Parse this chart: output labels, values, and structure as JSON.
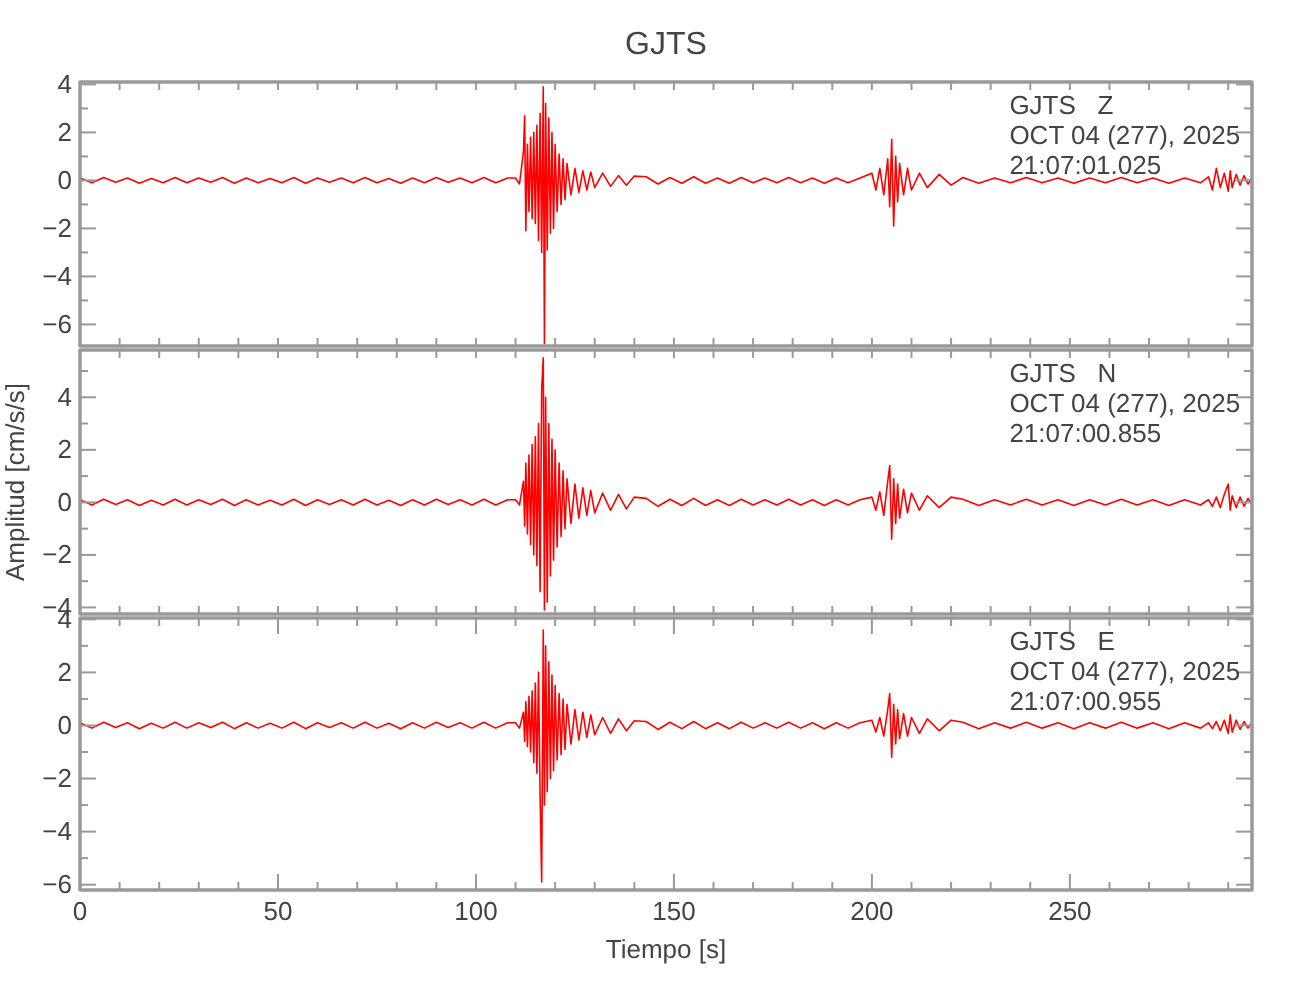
{
  "chart_data": [
    {
      "type": "line",
      "title": "GJTS",
      "annotations": [
        "GJTS   Z",
        "OCT 04 (277), 2025",
        "21:07:01.025"
      ],
      "tick_labels": "y",
      "x": [
        0,
        3,
        6,
        9,
        12,
        15,
        18,
        21,
        24,
        27,
        30,
        33,
        36,
        39,
        42,
        45,
        48,
        51,
        54,
        57,
        60,
        63,
        66,
        69,
        72,
        75,
        78,
        81,
        84,
        87,
        90,
        93,
        96,
        99,
        102,
        105,
        108,
        110,
        111,
        112,
        112.3,
        112.6,
        113,
        113.4,
        113.8,
        114.2,
        114.6,
        115,
        115.4,
        115.8,
        116.2,
        116.6,
        117,
        117.3,
        117.6,
        118,
        118.4,
        118.8,
        119.2,
        119.6,
        120,
        120.5,
        121,
        121.5,
        122,
        122.5,
        123,
        124,
        125,
        126,
        127,
        128,
        129,
        130,
        132,
        134,
        136,
        138,
        140,
        143,
        146,
        149,
        152,
        155,
        158,
        161,
        164,
        167,
        170,
        173,
        176,
        179,
        182,
        185,
        188,
        191,
        194,
        197,
        200,
        201,
        202,
        203,
        204,
        204.5,
        205,
        205.5,
        206,
        206.5,
        207,
        208,
        209,
        210,
        212,
        214,
        217,
        220,
        223,
        227,
        231,
        235,
        239,
        243,
        247,
        251,
        255,
        259,
        263,
        267,
        271,
        275,
        279,
        283,
        285,
        286,
        287,
        288,
        289,
        290,
        290.5,
        291,
        292,
        293,
        294,
        295,
        296
      ],
      "series": [
        {
          "color": "#ff0000",
          "values": [
            0.1,
            -0.1,
            0.12,
            -0.08,
            0.1,
            -0.12,
            0.08,
            -0.1,
            0.12,
            -0.1,
            0.1,
            -0.08,
            0.12,
            -0.12,
            0.1,
            -0.1,
            0.08,
            -0.1,
            0.12,
            -0.12,
            0.1,
            -0.08,
            0.1,
            -0.1,
            0.12,
            -0.1,
            0.08,
            -0.12,
            0.1,
            -0.1,
            0.12,
            -0.08,
            0.1,
            -0.1,
            0.12,
            -0.1,
            0.1,
            0.1,
            -0.15,
            1.2,
            2.7,
            -2.1,
            1.5,
            -1.3,
            1.8,
            -1.6,
            2.0,
            -1.8,
            2.3,
            -2.5,
            2.8,
            -3.0,
            3.9,
            -6.8,
            3.2,
            -2.9,
            2.6,
            -2.2,
            2.0,
            -2.0,
            1.5,
            -1.3,
            1.1,
            -1.0,
            0.9,
            -0.8,
            0.7,
            -0.6,
            0.5,
            -0.5,
            0.4,
            -0.4,
            0.35,
            -0.3,
            0.3,
            -0.25,
            0.2,
            -0.2,
            0.18,
            0.15,
            -0.15,
            0.12,
            -0.12,
            0.15,
            -0.12,
            0.1,
            -0.12,
            0.12,
            -0.1,
            0.1,
            -0.1,
            0.12,
            -0.1,
            0.1,
            -0.12,
            0.1,
            -0.1,
            0.1,
            0.3,
            -0.4,
            0.5,
            -0.6,
            0.9,
            -1.1,
            1.7,
            -1.9,
            1.0,
            -0.9,
            0.7,
            -0.6,
            0.5,
            -0.4,
            0.3,
            -0.3,
            0.25,
            -0.2,
            0.12,
            -0.12,
            0.1,
            -0.1,
            0.12,
            -0.1,
            0.1,
            -0.12,
            0.1,
            -0.1,
            0.12,
            -0.1,
            0.1,
            -0.12,
            0.1,
            -0.1,
            0.15,
            -0.4,
            0.5,
            -0.3,
            0.3,
            -0.45,
            0.4,
            -0.3,
            0.25,
            -0.2,
            0.2,
            -0.15,
            0.1
          ]
        }
      ],
      "xlim": [
        0,
        296
      ],
      "ylim": [
        -6.9,
        4.1
      ],
      "xticks": [
        {
          "value": 0,
          "label": null
        },
        {
          "value": 10,
          "label": null
        },
        {
          "value": 20,
          "label": null
        },
        {
          "value": 30,
          "label": null
        },
        {
          "value": 40,
          "label": null
        },
        {
          "value": 50,
          "label": null
        },
        {
          "value": 60,
          "label": null
        },
        {
          "value": 70,
          "label": null
        },
        {
          "value": 80,
          "label": null
        },
        {
          "value": 90,
          "label": null
        },
        {
          "value": 100,
          "label": null
        },
        {
          "value": 110,
          "label": null
        },
        {
          "value": 120,
          "label": null
        },
        {
          "value": 130,
          "label": null
        },
        {
          "value": 140,
          "label": null
        },
        {
          "value": 150,
          "label": null
        },
        {
          "value": 160,
          "label": null
        },
        {
          "value": 170,
          "label": null
        },
        {
          "value": 180,
          "label": null
        },
        {
          "value": 190,
          "label": null
        },
        {
          "value": 200,
          "label": null
        },
        {
          "value": 210,
          "label": null
        },
        {
          "value": 220,
          "label": null
        },
        {
          "value": 230,
          "label": null
        },
        {
          "value": 240,
          "label": null
        },
        {
          "value": 250,
          "label": null
        },
        {
          "value": 260,
          "label": null
        },
        {
          "value": 270,
          "label": null
        },
        {
          "value": 280,
          "label": null
        },
        {
          "value": 290,
          "label": null
        }
      ],
      "yticks": [
        {
          "value": -6,
          "label": "−6"
        },
        {
          "value": -5,
          "label": null
        },
        {
          "value": -4,
          "label": "−4"
        },
        {
          "value": -3,
          "label": null
        },
        {
          "value": -2,
          "label": "−2"
        },
        {
          "value": -1,
          "label": null
        },
        0,
        {
          "value": 1,
          "label": null
        },
        2,
        {
          "value": 3,
          "label": null
        },
        4
      ]
    },
    {
      "type": "line",
      "ylabel": "Amplitud [cm/s/s]",
      "annotations": [
        "GJTS   N",
        "OCT 04 (277), 2025",
        "21:07:00.855"
      ],
      "tick_labels": "y",
      "x": [
        0,
        3,
        6,
        9,
        12,
        15,
        18,
        21,
        24,
        27,
        30,
        33,
        36,
        39,
        42,
        45,
        48,
        51,
        54,
        57,
        60,
        63,
        66,
        69,
        72,
        75,
        78,
        81,
        84,
        87,
        90,
        93,
        96,
        99,
        102,
        105,
        108,
        110,
        111,
        112,
        112.3,
        112.6,
        113,
        113.4,
        113.8,
        114.2,
        114.6,
        115,
        115.4,
        115.8,
        116.2,
        116.6,
        117,
        117.3,
        117.6,
        118,
        118.4,
        118.8,
        119.2,
        119.6,
        120,
        120.5,
        121,
        121.5,
        122,
        122.5,
        123,
        124,
        125,
        126,
        127,
        128,
        129,
        130,
        132,
        134,
        136,
        138,
        140,
        143,
        146,
        149,
        152,
        155,
        158,
        161,
        164,
        167,
        170,
        173,
        176,
        179,
        182,
        185,
        188,
        191,
        194,
        197,
        200,
        201,
        202,
        203,
        204,
        204.5,
        205,
        205.5,
        206,
        206.5,
        207,
        208,
        209,
        210,
        212,
        214,
        217,
        220,
        223,
        227,
        231,
        235,
        239,
        243,
        247,
        251,
        255,
        259,
        263,
        267,
        271,
        275,
        279,
        283,
        285,
        286,
        287,
        288,
        289,
        290,
        290.5,
        291,
        292,
        293,
        294,
        295,
        296
      ],
      "series": [
        {
          "color": "#ff0000",
          "values": [
            0.1,
            -0.1,
            0.12,
            -0.08,
            0.1,
            -0.12,
            0.08,
            -0.1,
            0.12,
            -0.1,
            0.1,
            -0.08,
            0.12,
            -0.12,
            0.1,
            -0.1,
            0.08,
            -0.1,
            0.12,
            -0.12,
            0.1,
            -0.08,
            0.1,
            -0.1,
            0.12,
            -0.1,
            0.08,
            -0.12,
            0.1,
            -0.1,
            0.12,
            -0.08,
            0.1,
            -0.1,
            0.12,
            -0.1,
            0.1,
            0.1,
            -0.1,
            0.8,
            -0.9,
            1.5,
            -1.2,
            1.8,
            -1.6,
            2.2,
            -2.0,
            2.5,
            -2.4,
            3.0,
            -3.4,
            4.3,
            5.5,
            -4.1,
            4.0,
            -3.8,
            3.0,
            -2.8,
            2.4,
            -2.2,
            2.0,
            -1.7,
            1.5,
            -1.3,
            1.2,
            -1.0,
            0.9,
            -0.8,
            0.7,
            -0.6,
            0.55,
            -0.5,
            0.45,
            -0.4,
            0.35,
            -0.3,
            0.3,
            -0.25,
            0.2,
            0.15,
            -0.15,
            0.12,
            -0.12,
            0.15,
            -0.12,
            0.1,
            -0.12,
            0.12,
            -0.1,
            0.1,
            -0.1,
            0.12,
            -0.1,
            0.1,
            -0.12,
            0.1,
            -0.1,
            0.1,
            0.2,
            -0.3,
            0.4,
            -0.5,
            0.8,
            1.4,
            -1.4,
            0.9,
            -0.8,
            0.7,
            -0.6,
            0.5,
            -0.4,
            0.35,
            -0.3,
            0.25,
            -0.2,
            0.2,
            0.12,
            -0.12,
            0.1,
            -0.1,
            0.12,
            -0.1,
            0.1,
            -0.12,
            0.1,
            -0.1,
            0.12,
            -0.1,
            0.1,
            -0.12,
            0.1,
            -0.1,
            0.1,
            -0.15,
            0.2,
            -0.2,
            0.3,
            0.7,
            -0.3,
            0.25,
            -0.2,
            0.2,
            -0.15,
            0.15,
            -0.1
          ]
        }
      ],
      "xlim": [
        0,
        296
      ],
      "ylim": [
        -4.25,
        5.8
      ],
      "xticks": [
        {
          "value": 0,
          "label": null
        },
        {
          "value": 10,
          "label": null
        },
        {
          "value": 20,
          "label": null
        },
        {
          "value": 30,
          "label": null
        },
        {
          "value": 40,
          "label": null
        },
        {
          "value": 50,
          "label": null
        },
        {
          "value": 60,
          "label": null
        },
        {
          "value": 70,
          "label": null
        },
        {
          "value": 80,
          "label": null
        },
        {
          "value": 90,
          "label": null
        },
        {
          "value": 100,
          "label": null
        },
        {
          "value": 110,
          "label": null
        },
        {
          "value": 120,
          "label": null
        },
        {
          "value": 130,
          "label": null
        },
        {
          "value": 140,
          "label": null
        },
        {
          "value": 150,
          "label": null
        },
        {
          "value": 160,
          "label": null
        },
        {
          "value": 170,
          "label": null
        },
        {
          "value": 180,
          "label": null
        },
        {
          "value": 190,
          "label": null
        },
        {
          "value": 200,
          "label": null
        },
        {
          "value": 210,
          "label": null
        },
        {
          "value": 220,
          "label": null
        },
        {
          "value": 230,
          "label": null
        },
        {
          "value": 240,
          "label": null
        },
        {
          "value": 250,
          "label": null
        },
        {
          "value": 260,
          "label": null
        },
        {
          "value": 270,
          "label": null
        },
        {
          "value": 280,
          "label": null
        },
        {
          "value": 290,
          "label": null
        }
      ],
      "yticks": [
        {
          "value": -4,
          "label": "−4"
        },
        {
          "value": -3,
          "label": null
        },
        {
          "value": -2,
          "label": "−2"
        },
        {
          "value": -1,
          "label": null
        },
        0,
        {
          "value": 1,
          "label": null
        },
        2,
        {
          "value": 3,
          "label": null
        },
        4,
        {
          "value": 5,
          "label": null
        }
      ]
    },
    {
      "type": "line",
      "xlabel": "Tiempo [s]",
      "annotations": [
        "GJTS   E",
        "OCT 04 (277), 2025",
        "21:07:00.955"
      ],
      "x": [
        0,
        3,
        6,
        9,
        12,
        15,
        18,
        21,
        24,
        27,
        30,
        33,
        36,
        39,
        42,
        45,
        48,
        51,
        54,
        57,
        60,
        63,
        66,
        69,
        72,
        75,
        78,
        81,
        84,
        87,
        90,
        93,
        96,
        99,
        102,
        105,
        108,
        110,
        111,
        112,
        112.3,
        112.6,
        113,
        113.4,
        113.8,
        114.2,
        114.6,
        115,
        115.4,
        115.8,
        116.2,
        116.6,
        117,
        117.3,
        117.6,
        118,
        118.4,
        118.8,
        119.2,
        119.6,
        120,
        120.5,
        121,
        121.5,
        122,
        122.5,
        123,
        124,
        125,
        126,
        127,
        128,
        129,
        130,
        132,
        134,
        136,
        138,
        140,
        143,
        146,
        149,
        152,
        155,
        158,
        161,
        164,
        167,
        170,
        173,
        176,
        179,
        182,
        185,
        188,
        191,
        194,
        197,
        200,
        201,
        202,
        203,
        204,
        204.5,
        205,
        205.5,
        206,
        206.5,
        207,
        208,
        209,
        210,
        212,
        214,
        217,
        220,
        223,
        227,
        231,
        235,
        239,
        243,
        247,
        251,
        255,
        259,
        263,
        267,
        271,
        275,
        279,
        283,
        285,
        286,
        287,
        288,
        289,
        290,
        290.5,
        291,
        292,
        293,
        294,
        295,
        296
      ],
      "series": [
        {
          "color": "#ff0000",
          "values": [
            0.1,
            -0.1,
            0.12,
            -0.08,
            0.1,
            -0.12,
            0.08,
            -0.1,
            0.12,
            -0.1,
            0.1,
            -0.08,
            0.12,
            -0.12,
            0.1,
            -0.1,
            0.08,
            -0.1,
            0.12,
            -0.12,
            0.1,
            -0.08,
            0.1,
            -0.1,
            0.12,
            -0.1,
            0.08,
            -0.12,
            0.1,
            -0.1,
            0.12,
            -0.08,
            0.1,
            -0.1,
            0.12,
            -0.1,
            0.1,
            0.1,
            -0.1,
            0.5,
            -0.6,
            0.9,
            -0.8,
            1.1,
            -1.0,
            1.3,
            -1.4,
            1.6,
            -1.8,
            2.0,
            -2.6,
            -5.9,
            3.6,
            -3.0,
            3.0,
            -2.5,
            2.4,
            -2.0,
            1.9,
            -1.7,
            1.5,
            -1.3,
            1.2,
            -1.1,
            1.0,
            -0.9,
            0.8,
            -0.7,
            0.6,
            -0.55,
            0.5,
            -0.45,
            0.4,
            -0.35,
            0.3,
            -0.3,
            0.25,
            -0.2,
            0.18,
            0.15,
            -0.15,
            0.12,
            -0.12,
            0.15,
            -0.12,
            0.1,
            -0.12,
            0.12,
            -0.1,
            0.1,
            -0.1,
            0.12,
            -0.1,
            0.1,
            -0.12,
            0.1,
            -0.1,
            0.1,
            0.2,
            -0.25,
            0.3,
            -0.4,
            0.6,
            1.2,
            -1.2,
            0.8,
            -0.7,
            0.6,
            -0.5,
            0.45,
            -0.4,
            0.3,
            -0.3,
            0.25,
            -0.2,
            0.2,
            0.12,
            -0.12,
            0.1,
            -0.1,
            0.12,
            -0.1,
            0.1,
            -0.12,
            0.1,
            -0.1,
            0.12,
            -0.1,
            0.1,
            -0.12,
            0.1,
            -0.1,
            0.1,
            -0.12,
            0.15,
            -0.2,
            0.2,
            -0.3,
            0.4,
            -0.25,
            0.2,
            -0.15,
            0.15,
            -0.1,
            0.1
          ]
        }
      ],
      "xlim": [
        0,
        296
      ],
      "ylim": [
        -6.2,
        4.05
      ],
      "xticks": [
        {
          "value": 0,
          "label": "0"
        },
        {
          "value": 10,
          "label": null
        },
        {
          "value": 20,
          "label": null
        },
        {
          "value": 30,
          "label": null
        },
        {
          "value": 40,
          "label": null
        },
        {
          "value": 50,
          "label": "50"
        },
        {
          "value": 60,
          "label": null
        },
        {
          "value": 70,
          "label": null
        },
        {
          "value": 80,
          "label": null
        },
        {
          "value": 90,
          "label": null
        },
        {
          "value": 100,
          "label": "100"
        },
        {
          "value": 110,
          "label": null
        },
        {
          "value": 120,
          "label": null
        },
        {
          "value": 130,
          "label": null
        },
        {
          "value": 140,
          "label": null
        },
        {
          "value": 150,
          "label": "150"
        },
        {
          "value": 160,
          "label": null
        },
        {
          "value": 170,
          "label": null
        },
        {
          "value": 180,
          "label": null
        },
        {
          "value": 190,
          "label": null
        },
        {
          "value": 200,
          "label": "200"
        },
        {
          "value": 210,
          "label": null
        },
        {
          "value": 220,
          "label": null
        },
        {
          "value": 230,
          "label": null
        },
        {
          "value": 240,
          "label": null
        },
        {
          "value": 250,
          "label": "250"
        },
        {
          "value": 260,
          "label": null
        },
        {
          "value": 270,
          "label": null
        },
        {
          "value": 280,
          "label": null
        },
        {
          "value": 290,
          "label": null
        }
      ],
      "yticks": [
        {
          "value": -6,
          "label": "−6"
        },
        {
          "value": -5,
          "label": null
        },
        {
          "value": -4,
          "label": "−4"
        },
        {
          "value": -3,
          "label": null
        },
        {
          "value": -2,
          "label": "−2"
        },
        {
          "value": -1,
          "label": null
        },
        0,
        {
          "value": 1,
          "label": null
        },
        2,
        {
          "value": 3,
          "label": null
        },
        4
      ]
    }
  ]
}
